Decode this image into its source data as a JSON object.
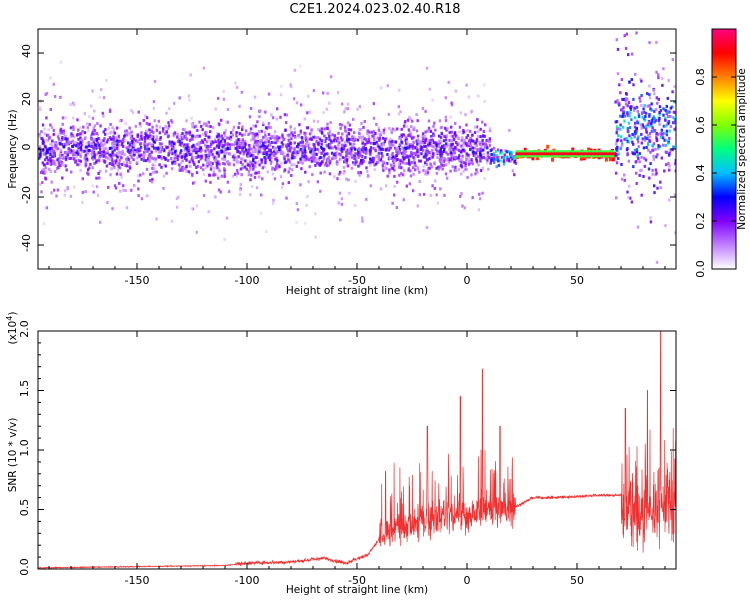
{
  "title": "C2E1.2024.023.02.40.R18",
  "chart_data": [
    {
      "type": "heatmap",
      "xlabel": "Height of straight line (km)",
      "ylabel": "Frequency (Hz)",
      "xlim": [
        -195,
        95
      ],
      "ylim": [
        -50,
        50
      ],
      "xticks": [
        -150,
        -100,
        -50,
        0,
        50
      ],
      "yticks": [
        -40,
        -20,
        0,
        20,
        40
      ],
      "colorbar": {
        "label": "Normalized spectral amplitude",
        "range": [
          0.0,
          1.0
        ],
        "ticks": [
          0.0,
          0.2,
          0.4,
          0.6,
          0.8
        ],
        "colormap": [
          "#ffffff",
          "#c080ff",
          "#8000ff",
          "#0000ff",
          "#00c0ff",
          "#00ff80",
          "#80ff00",
          "#ffff00",
          "#ff8000",
          "#ff0000",
          "#ff0080"
        ]
      },
      "structure": [
        {
          "x_range": [
            -195,
            10
          ],
          "freq_center": 0,
          "freq_spread": 12,
          "amplitude": 0.25,
          "note": "broad scattered noise band around 0 Hz"
        },
        {
          "x_range": [
            10,
            22
          ],
          "freq_center": -3,
          "freq_spread": 4,
          "amplitude": 0.5
        },
        {
          "x_range": [
            22,
            67
          ],
          "freq_center": -2,
          "freq_spread": 1,
          "amplitude": 0.95
        },
        {
          "x_range": [
            67,
            95
          ],
          "freq_center": 8,
          "freq_spread": 20,
          "amplitude": 0.4
        }
      ]
    },
    {
      "type": "line",
      "xlabel": "Height of straight line (km)",
      "ylabel": "SNR (10 * v/v)",
      "yscale_label": "(x10",
      "yscale_exp": "4",
      "xlim": [
        -195,
        95
      ],
      "ylim": [
        0,
        2.0
      ],
      "xticks": [
        -150,
        -100,
        -50,
        0,
        50
      ],
      "yticks": [
        0.0,
        0.5,
        1.0,
        1.5,
        2.0
      ],
      "series": [
        {
          "color": "#f03030",
          "x": [
            -195,
            -150,
            -110,
            -100,
            -80,
            -65,
            -55,
            -45,
            -38,
            -30,
            -20,
            -10,
            0,
            10,
            20,
            25,
            30,
            40,
            50,
            60,
            70,
            72,
            80,
            90,
            95
          ],
          "y": [
            0.01,
            0.02,
            0.03,
            0.05,
            0.06,
            0.09,
            0.05,
            0.12,
            0.3,
            0.35,
            0.4,
            0.45,
            0.45,
            0.5,
            0.5,
            0.55,
            0.6,
            0.6,
            0.61,
            0.62,
            0.62,
            0.45,
            0.4,
            0.5,
            0.55
          ],
          "peaks": [
            [
              -37,
              0.82
            ],
            [
              -18,
              1.2
            ],
            [
              -3,
              1.45
            ],
            [
              7,
              1.68
            ],
            [
              15,
              1.2
            ],
            [
              72,
              1.35
            ],
            [
              82,
              1.5
            ],
            [
              88,
              2.0
            ]
          ]
        }
      ]
    }
  ]
}
